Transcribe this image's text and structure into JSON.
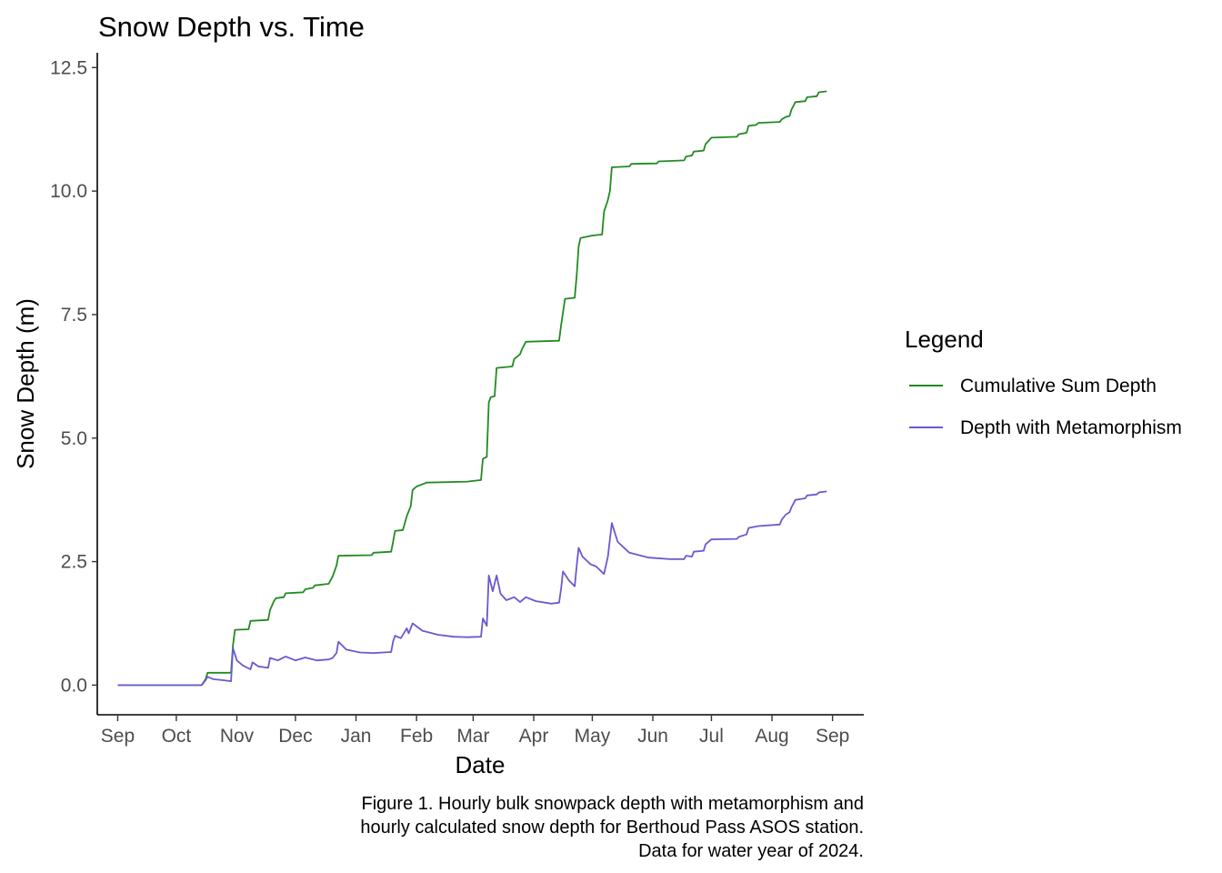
{
  "chart_data": {
    "type": "line",
    "title": "Snow Depth vs. Time",
    "xlabel": "Date",
    "ylabel": "Snow Depth (m)",
    "x_ticks": [
      {
        "date": "2023-09-01",
        "label": "Sep"
      },
      {
        "date": "2023-10-01",
        "label": "Oct"
      },
      {
        "date": "2023-11-01",
        "label": "Nov"
      },
      {
        "date": "2023-12-01",
        "label": "Dec"
      },
      {
        "date": "2024-01-01",
        "label": "Jan"
      },
      {
        "date": "2024-02-01",
        "label": "Feb"
      },
      {
        "date": "2024-03-01",
        "label": "Mar"
      },
      {
        "date": "2024-04-01",
        "label": "Apr"
      },
      {
        "date": "2024-05-01",
        "label": "May"
      },
      {
        "date": "2024-06-01",
        "label": "Jun"
      },
      {
        "date": "2024-07-01",
        "label": "Jul"
      },
      {
        "date": "2024-08-01",
        "label": "Aug"
      },
      {
        "date": "2024-09-01",
        "label": "Sep"
      }
    ],
    "y_ticks": [
      {
        "value": 0,
        "label": "0.0"
      },
      {
        "value": 2.5,
        "label": "2.5"
      },
      {
        "value": 5,
        "label": "5.0"
      },
      {
        "value": 7.5,
        "label": "7.5"
      },
      {
        "value": 10,
        "label": "10.0"
      },
      {
        "value": 12.5,
        "label": "12.5"
      }
    ],
    "xlim": [
      "2023-08-22",
      "2024-09-17"
    ],
    "ylim": [
      -0.6,
      12.8
    ],
    "grid": false,
    "legend": {
      "title": "Legend",
      "position": "right"
    },
    "series": [
      {
        "name": "Cumulative Sum Depth",
        "color": "#228B22",
        "points": [
          [
            "2023-09-01",
            0.0
          ],
          [
            "2023-10-14",
            0.0
          ],
          [
            "2023-10-15",
            0.06
          ],
          [
            "2023-10-16",
            0.12
          ],
          [
            "2023-10-17",
            0.25
          ],
          [
            "2023-10-29",
            0.25
          ],
          [
            "2023-10-30",
            0.8
          ],
          [
            "2023-10-31",
            1.12
          ],
          [
            "2023-11-07",
            1.13
          ],
          [
            "2023-11-08",
            1.3
          ],
          [
            "2023-11-17",
            1.32
          ],
          [
            "2023-11-18",
            1.52
          ],
          [
            "2023-11-20",
            1.7
          ],
          [
            "2023-11-21",
            1.76
          ],
          [
            "2023-11-25",
            1.78
          ],
          [
            "2023-11-26",
            1.86
          ],
          [
            "2023-12-05",
            1.88
          ],
          [
            "2023-12-06",
            1.94
          ],
          [
            "2023-12-10",
            1.97
          ],
          [
            "2023-12-11",
            2.02
          ],
          [
            "2023-12-18",
            2.05
          ],
          [
            "2023-12-20",
            2.2
          ],
          [
            "2023-12-22",
            2.42
          ],
          [
            "2023-12-23",
            2.62
          ],
          [
            "2024-01-09",
            2.63
          ],
          [
            "2024-01-10",
            2.68
          ],
          [
            "2024-01-19",
            2.7
          ],
          [
            "2024-01-20",
            2.9
          ],
          [
            "2024-01-21",
            3.12
          ],
          [
            "2024-01-25",
            3.14
          ],
          [
            "2024-01-27",
            3.42
          ],
          [
            "2024-01-29",
            3.62
          ],
          [
            "2024-01-30",
            3.95
          ],
          [
            "2024-02-01",
            4.02
          ],
          [
            "2024-02-05",
            4.08
          ],
          [
            "2024-02-06",
            4.1
          ],
          [
            "2024-02-27",
            4.12
          ],
          [
            "2024-03-05",
            4.15
          ],
          [
            "2024-03-06",
            4.58
          ],
          [
            "2024-03-08",
            4.62
          ],
          [
            "2024-03-09",
            5.72
          ],
          [
            "2024-03-10",
            5.83
          ],
          [
            "2024-03-12",
            5.85
          ],
          [
            "2024-03-13",
            6.42
          ],
          [
            "2024-03-21",
            6.45
          ],
          [
            "2024-03-22",
            6.6
          ],
          [
            "2024-03-25",
            6.7
          ],
          [
            "2024-03-26",
            6.8
          ],
          [
            "2024-03-28",
            6.95
          ],
          [
            "2024-04-14",
            6.97
          ],
          [
            "2024-04-15",
            7.28
          ],
          [
            "2024-04-17",
            7.82
          ],
          [
            "2024-04-22",
            7.84
          ],
          [
            "2024-04-23",
            8.3
          ],
          [
            "2024-04-24",
            8.88
          ],
          [
            "2024-04-25",
            9.05
          ],
          [
            "2024-05-01",
            9.1
          ],
          [
            "2024-05-06",
            9.12
          ],
          [
            "2024-05-07",
            9.58
          ],
          [
            "2024-05-09",
            9.82
          ],
          [
            "2024-05-10",
            10.0
          ],
          [
            "2024-05-11",
            10.48
          ],
          [
            "2024-05-20",
            10.5
          ],
          [
            "2024-05-21",
            10.55
          ],
          [
            "2024-06-03",
            10.56
          ],
          [
            "2024-06-04",
            10.6
          ],
          [
            "2024-06-17",
            10.62
          ],
          [
            "2024-06-18",
            10.7
          ],
          [
            "2024-06-21",
            10.72
          ],
          [
            "2024-06-22",
            10.8
          ],
          [
            "2024-06-27",
            10.82
          ],
          [
            "2024-06-28",
            10.95
          ],
          [
            "2024-07-01",
            11.08
          ],
          [
            "2024-07-14",
            11.1
          ],
          [
            "2024-07-15",
            11.15
          ],
          [
            "2024-07-19",
            11.18
          ],
          [
            "2024-07-20",
            11.32
          ],
          [
            "2024-07-24",
            11.34
          ],
          [
            "2024-07-25",
            11.38
          ],
          [
            "2024-08-05",
            11.4
          ],
          [
            "2024-08-06",
            11.45
          ],
          [
            "2024-08-08",
            11.5
          ],
          [
            "2024-08-10",
            11.52
          ],
          [
            "2024-08-11",
            11.65
          ],
          [
            "2024-08-13",
            11.8
          ],
          [
            "2024-08-18",
            11.82
          ],
          [
            "2024-08-19",
            11.9
          ],
          [
            "2024-08-24",
            11.92
          ],
          [
            "2024-08-25",
            12.0
          ],
          [
            "2024-08-29",
            12.02
          ]
        ]
      },
      {
        "name": "Depth with Metamorphism",
        "color": "#6A5ACD",
        "points": [
          [
            "2023-09-01",
            0.0
          ],
          [
            "2023-10-14",
            0.0
          ],
          [
            "2023-10-15",
            0.05
          ],
          [
            "2023-10-16",
            0.1
          ],
          [
            "2023-10-17",
            0.17
          ],
          [
            "2023-10-20",
            0.12
          ],
          [
            "2023-10-25",
            0.1
          ],
          [
            "2023-10-29",
            0.08
          ],
          [
            "2023-10-30",
            0.75
          ],
          [
            "2023-11-01",
            0.5
          ],
          [
            "2023-11-04",
            0.4
          ],
          [
            "2023-11-08",
            0.32
          ],
          [
            "2023-11-09",
            0.46
          ],
          [
            "2023-11-12",
            0.38
          ],
          [
            "2023-11-17",
            0.35
          ],
          [
            "2023-11-18",
            0.55
          ],
          [
            "2023-11-22",
            0.5
          ],
          [
            "2023-11-26",
            0.58
          ],
          [
            "2023-12-01",
            0.5
          ],
          [
            "2023-12-06",
            0.56
          ],
          [
            "2023-12-12",
            0.5
          ],
          [
            "2023-12-18",
            0.52
          ],
          [
            "2023-12-20",
            0.55
          ],
          [
            "2023-12-22",
            0.65
          ],
          [
            "2023-12-23",
            0.88
          ],
          [
            "2023-12-27",
            0.72
          ],
          [
            "2024-01-03",
            0.66
          ],
          [
            "2024-01-10",
            0.65
          ],
          [
            "2024-01-19",
            0.67
          ],
          [
            "2024-01-20",
            0.88
          ],
          [
            "2024-01-21",
            1.0
          ],
          [
            "2024-01-24",
            0.95
          ],
          [
            "2024-01-27",
            1.15
          ],
          [
            "2024-01-28",
            1.05
          ],
          [
            "2024-01-30",
            1.25
          ],
          [
            "2024-02-04",
            1.1
          ],
          [
            "2024-02-12",
            1.02
          ],
          [
            "2024-02-20",
            0.98
          ],
          [
            "2024-02-27",
            0.97
          ],
          [
            "2024-03-05",
            0.98
          ],
          [
            "2024-03-06",
            1.35
          ],
          [
            "2024-03-08",
            1.2
          ],
          [
            "2024-03-09",
            2.22
          ],
          [
            "2024-03-11",
            1.9
          ],
          [
            "2024-03-13",
            2.22
          ],
          [
            "2024-03-15",
            1.85
          ],
          [
            "2024-03-18",
            1.72
          ],
          [
            "2024-03-22",
            1.78
          ],
          [
            "2024-03-25",
            1.68
          ],
          [
            "2024-03-28",
            1.78
          ],
          [
            "2024-04-02",
            1.7
          ],
          [
            "2024-04-10",
            1.65
          ],
          [
            "2024-04-14",
            1.67
          ],
          [
            "2024-04-15",
            1.95
          ],
          [
            "2024-04-16",
            2.3
          ],
          [
            "2024-04-19",
            2.12
          ],
          [
            "2024-04-22",
            2.0
          ],
          [
            "2024-04-23",
            2.42
          ],
          [
            "2024-04-24",
            2.78
          ],
          [
            "2024-04-26",
            2.6
          ],
          [
            "2024-04-30",
            2.45
          ],
          [
            "2024-05-03",
            2.4
          ],
          [
            "2024-05-07",
            2.25
          ],
          [
            "2024-05-09",
            2.6
          ],
          [
            "2024-05-11",
            3.28
          ],
          [
            "2024-05-14",
            2.9
          ],
          [
            "2024-05-20",
            2.68
          ],
          [
            "2024-05-30",
            2.58
          ],
          [
            "2024-06-10",
            2.55
          ],
          [
            "2024-06-17",
            2.55
          ],
          [
            "2024-06-18",
            2.62
          ],
          [
            "2024-06-21",
            2.6
          ],
          [
            "2024-06-22",
            2.7
          ],
          [
            "2024-06-27",
            2.72
          ],
          [
            "2024-06-28",
            2.85
          ],
          [
            "2024-07-01",
            2.95
          ],
          [
            "2024-07-14",
            2.96
          ],
          [
            "2024-07-15",
            3.0
          ],
          [
            "2024-07-19",
            3.05
          ],
          [
            "2024-07-20",
            3.18
          ],
          [
            "2024-07-25",
            3.22
          ],
          [
            "2024-08-05",
            3.25
          ],
          [
            "2024-08-06",
            3.35
          ],
          [
            "2024-08-08",
            3.45
          ],
          [
            "2024-08-10",
            3.5
          ],
          [
            "2024-08-11",
            3.6
          ],
          [
            "2024-08-13",
            3.75
          ],
          [
            "2024-08-18",
            3.78
          ],
          [
            "2024-08-19",
            3.84
          ],
          [
            "2024-08-24",
            3.86
          ],
          [
            "2024-08-25",
            3.9
          ],
          [
            "2024-08-29",
            3.92
          ]
        ]
      }
    ],
    "caption": [
      "Figure 1. Hourly bulk snowpack depth with metamorphism and",
      "hourly calculated snow depth for Berthoud Pass ASOS station.",
      "Data for water year of 2024."
    ]
  }
}
